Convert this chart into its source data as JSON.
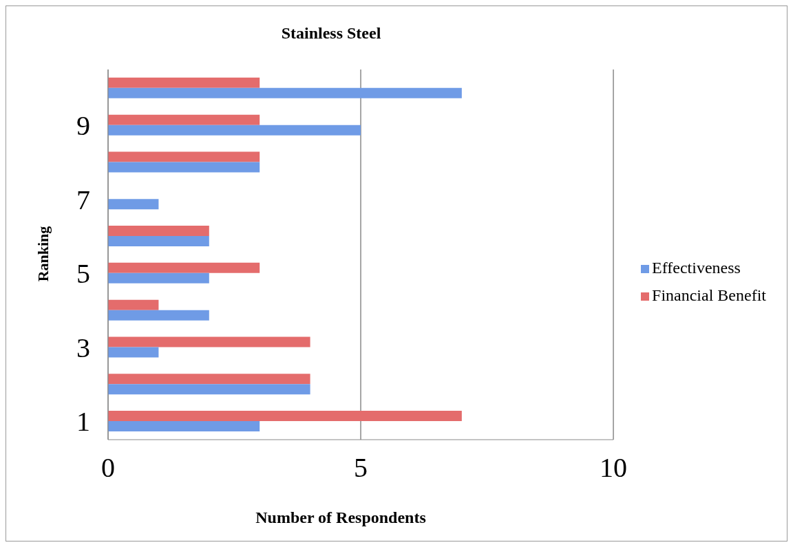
{
  "chart_data": {
    "type": "bar",
    "orientation": "horizontal",
    "title": "Stainless Steel",
    "xlabel": "Number of Respondents",
    "ylabel": "Ranking",
    "categories": [
      null,
      "9",
      null,
      "7",
      null,
      "5",
      null,
      "3",
      null,
      "1"
    ],
    "series": [
      {
        "name": "Financial Benefit",
        "color": "#e46c6c",
        "values": [
          3,
          3,
          3,
          0,
          2,
          3,
          1,
          4,
          4,
          7
        ]
      },
      {
        "name": "Effectiveness",
        "color": "#6f9be6",
        "values": [
          7,
          5,
          3,
          1,
          2,
          2,
          2,
          1,
          4,
          3
        ]
      }
    ],
    "xlim": [
      0,
      10
    ],
    "xticks": [
      0,
      5,
      10
    ],
    "grid": "x",
    "legend": "right"
  }
}
